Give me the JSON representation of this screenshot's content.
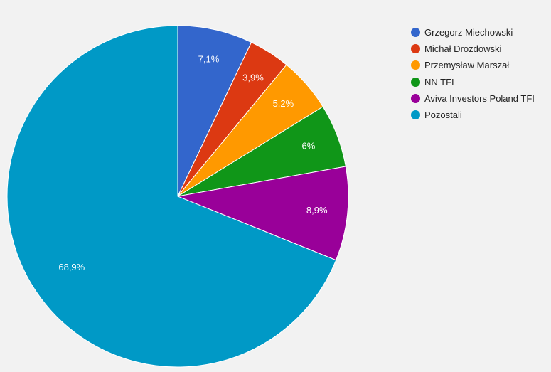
{
  "chart_data": {
    "type": "pie",
    "categories": [
      "Grzegorz Miechowski",
      "Michał Drozdowski",
      "Przemysław Marszał",
      "NN TFI",
      "Aviva Investors Poland TFI",
      "Pozostali"
    ],
    "values": [
      7.1,
      3.9,
      5.2,
      6.0,
      8.9,
      68.9
    ],
    "value_labels": [
      "7,1%",
      "3,9%",
      "5,2%",
      "6%",
      "8,9%",
      "68,9%"
    ],
    "colors": [
      "#3366cc",
      "#dc3912",
      "#ff9900",
      "#109618",
      "#990099",
      "#0099c6"
    ],
    "legend_position": "right"
  }
}
